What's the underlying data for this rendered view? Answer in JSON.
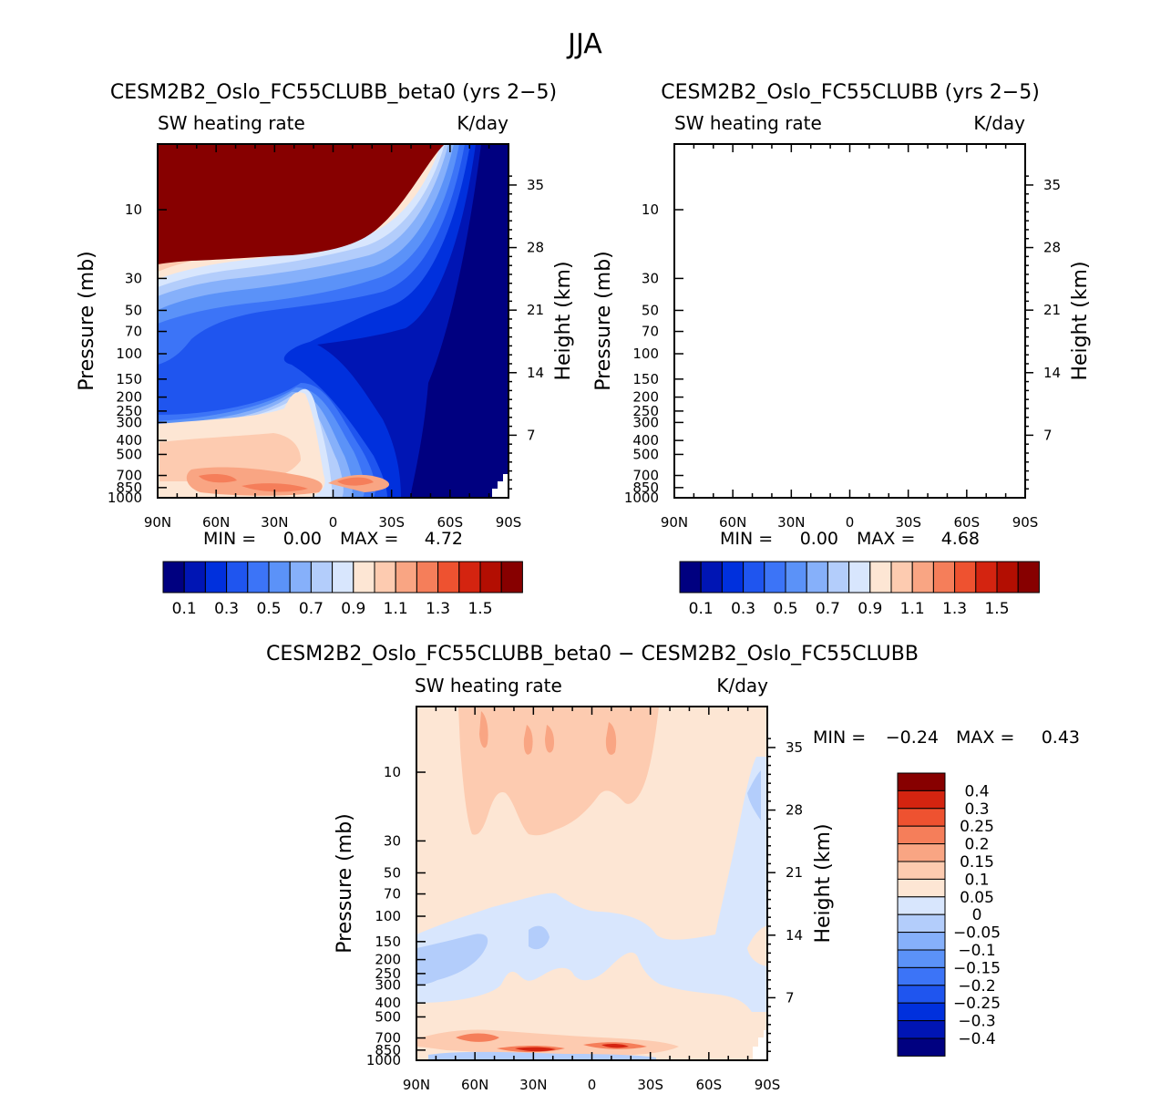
{
  "figure_title": "JJA",
  "palette": {
    "abs": [
      "#000080",
      "#0015b4",
      "#0030dd",
      "#1f55ef",
      "#3c74f7",
      "#5b92f8",
      "#86b0fa",
      "#b3cdfb",
      "#d8e6fd",
      "#fde6d4",
      "#fdcbb0",
      "#f9a583",
      "#f57e5a",
      "#ee5230",
      "#d42410",
      "#b30e02",
      "#870000"
    ],
    "diff": [
      "#000080",
      "#0015b4",
      "#0030dd",
      "#1f55ef",
      "#3c74f7",
      "#5b92f8",
      "#86b0fa",
      "#b3cdfb",
      "#d8e6fd",
      "#fde6d4",
      "#fdcbb0",
      "#f9a583",
      "#f57e5a",
      "#ee5230",
      "#d42410",
      "#870000"
    ]
  },
  "chart_data": [
    {
      "type": "contour",
      "title": "CESM2B2_Oslo_FC55CLUBB_beta0 (yrs 2−5)",
      "variable_label": "SW heating rate",
      "units_label": "K/day",
      "xlabel": "",
      "ylabel": "Pressure (mb)",
      "y2label": "Height (km)",
      "x_ticks": [
        "90N",
        "60N",
        "30N",
        "0",
        "30S",
        "60S",
        "90S"
      ],
      "y_ticks": [
        "10",
        "30",
        "50",
        "70",
        "100",
        "150",
        "200",
        "250",
        "300",
        "400",
        "500",
        "700",
        "850",
        "1000"
      ],
      "y2_ticks": [
        "35",
        "28",
        "21",
        "14",
        "7"
      ],
      "min_label": "MIN =",
      "min_value": "0.00",
      "max_label": "MAX =",
      "max_value": "4.72",
      "colorbar_labels": [
        "0.1",
        "0.3",
        "0.5",
        "0.7",
        "0.9",
        "1.1",
        "1.3",
        "1.5"
      ],
      "colorbar_levels": [
        0.1,
        0.2,
        0.3,
        0.4,
        0.5,
        0.6,
        0.7,
        0.8,
        0.9,
        1.0,
        1.1,
        1.2,
        1.3,
        1.4,
        1.5,
        1.6
      ]
    },
    {
      "type": "contour",
      "title": "CESM2B2_Oslo_FC55CLUBB (yrs 2−5)",
      "variable_label": "SW heating rate",
      "units_label": "K/day",
      "xlabel": "",
      "ylabel": "Pressure (mb)",
      "y2label": "Height (km)",
      "x_ticks": [
        "90N",
        "60N",
        "30N",
        "0",
        "30S",
        "60S",
        "90S"
      ],
      "y_ticks": [
        "10",
        "30",
        "50",
        "70",
        "100",
        "150",
        "200",
        "250",
        "300",
        "400",
        "500",
        "700",
        "850",
        "1000"
      ],
      "y2_ticks": [
        "35",
        "28",
        "21",
        "14",
        "7"
      ],
      "min_label": "MIN =",
      "min_value": "0.00",
      "max_label": "MAX =",
      "max_value": "4.68",
      "colorbar_labels": [
        "0.1",
        "0.3",
        "0.5",
        "0.7",
        "0.9",
        "1.1",
        "1.3",
        "1.5"
      ],
      "colorbar_levels": [
        0.1,
        0.2,
        0.3,
        0.4,
        0.5,
        0.6,
        0.7,
        0.8,
        0.9,
        1.0,
        1.1,
        1.2,
        1.3,
        1.4,
        1.5,
        1.6
      ]
    },
    {
      "type": "contour",
      "title": "CESM2B2_Oslo_FC55CLUBB_beta0 − CESM2B2_Oslo_FC55CLUBB",
      "variable_label": "SW heating rate",
      "units_label": "K/day",
      "xlabel": "",
      "ylabel": "Pressure (mb)",
      "y2label": "Height (km)",
      "x_ticks": [
        "90N",
        "60N",
        "30N",
        "0",
        "30S",
        "60S",
        "90S"
      ],
      "y_ticks": [
        "10",
        "30",
        "50",
        "70",
        "100",
        "150",
        "200",
        "250",
        "300",
        "400",
        "500",
        "700",
        "850",
        "1000"
      ],
      "y2_ticks": [
        "35",
        "28",
        "21",
        "14",
        "7"
      ],
      "min_label": "MIN =",
      "min_value": "−0.24",
      "max_label": "MAX =",
      "max_value": "0.43",
      "colorbar_labels": [
        "0.4",
        "0.3",
        "0.25",
        "0.2",
        "0.15",
        "0.1",
        "0.05",
        "0",
        "−0.05",
        "−0.1",
        "−0.15",
        "−0.2",
        "−0.25",
        "−0.3",
        "−0.4"
      ],
      "colorbar_levels": [
        -0.4,
        -0.3,
        -0.25,
        -0.2,
        -0.15,
        -0.1,
        -0.05,
        0,
        0.05,
        0.1,
        0.15,
        0.2,
        0.25,
        0.3,
        0.4
      ]
    }
  ]
}
